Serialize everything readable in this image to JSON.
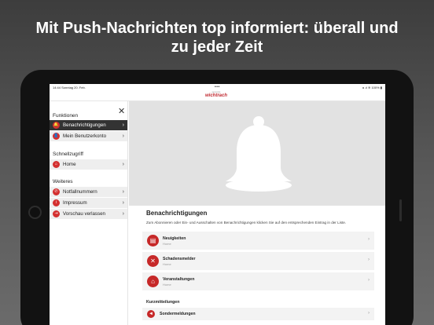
{
  "headline": {
    "line1": "Mit Push-Nachrichten top informiert: überall und",
    "line2": "zu jeder Zeit"
  },
  "statusbar": {
    "time": "14:44  Sonntag 20. Feb.",
    "dots": "•••",
    "right": "◂ .ıl ≋ 100% ▮"
  },
  "logo": {
    "small": "gemeinde",
    "big": "wichtrach"
  },
  "sidebar": {
    "close_icon": "close-icon",
    "sections": [
      {
        "title": "Funktionen"
      },
      {
        "title": "Schnellzugriff"
      },
      {
        "title": "Weiteres"
      }
    ],
    "items": [
      {
        "label": "Benachrichtigungen",
        "icon": "bell-icon",
        "glyph": "🔔",
        "active": true
      },
      {
        "label": "Mein Benutzerkonto",
        "icon": "user-icon",
        "glyph": "👤",
        "active": false
      },
      {
        "label": "Home",
        "icon": "home-icon",
        "glyph": "⌂",
        "active": false
      },
      {
        "label": "Notfallnummern",
        "icon": "phone-icon",
        "glyph": "✆",
        "active": false
      },
      {
        "label": "Impressum",
        "icon": "info-icon",
        "glyph": "i",
        "active": false
      },
      {
        "label": "Vorschau verlassen",
        "icon": "exit-icon",
        "glyph": "⇥",
        "active": false
      }
    ]
  },
  "main": {
    "title": "Benachrichtigungen",
    "description": "Zum Abonnieren oder Ein- und Ausschalten von Benachrichtigungen klicken Sie auf den entsprechenden Eintrag in der Liste.",
    "cards": [
      {
        "title": "Neuigkeiten",
        "subtitle": "Home",
        "icon": "news-icon",
        "glyph": "▤"
      },
      {
        "title": "Schadensmelder",
        "subtitle": "Home",
        "icon": "tools-icon",
        "glyph": "✕"
      },
      {
        "title": "Veranstaltungen",
        "subtitle": "Home",
        "icon": "event-icon",
        "glyph": "⌂"
      }
    ],
    "sub_title": "Kurzmitteilungen",
    "sub_cards": [
      {
        "title": "Sondermeldungen",
        "icon": "megaphone-icon",
        "glyph": "◄"
      }
    ]
  },
  "colors": {
    "accent": "#c62828",
    "active_bg": "#333333"
  }
}
